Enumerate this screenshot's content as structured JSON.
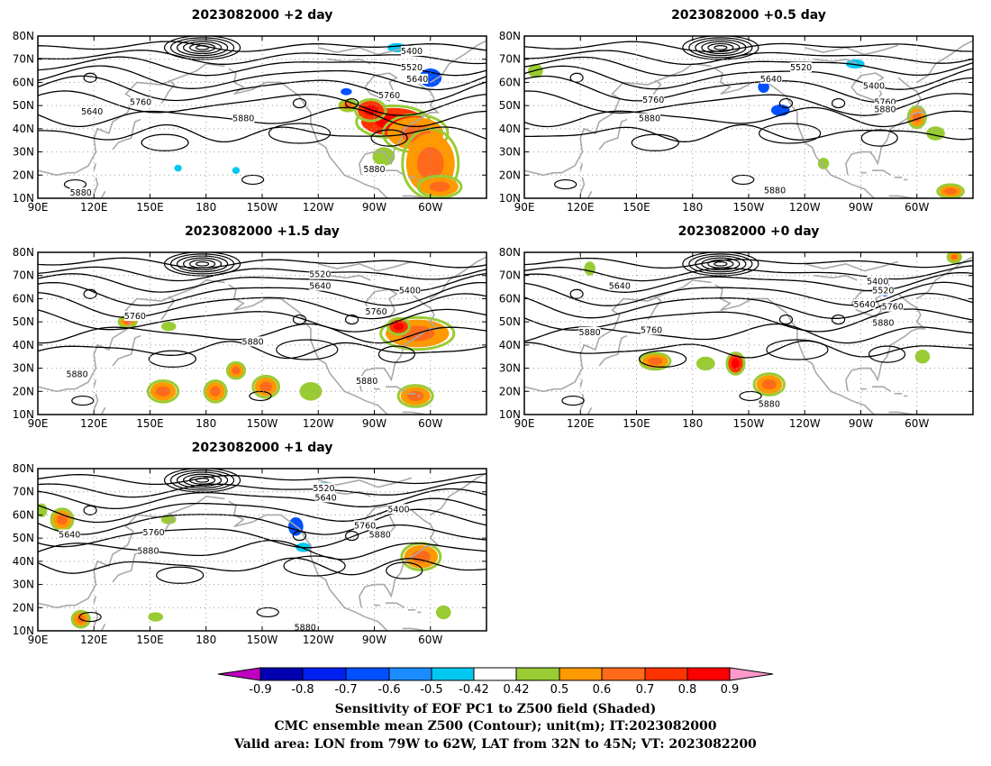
{
  "panels": [
    {
      "id": "p2",
      "title": "2023082000  +2 day",
      "lat_ticks": [
        "80N",
        "70N",
        "60N",
        "50N",
        "40N",
        "30N",
        "20N",
        "10N"
      ],
      "lon_ticks": [
        "90E",
        "120E",
        "150E",
        "180",
        "150W",
        "120W",
        "90W",
        "60W"
      ],
      "contour_labels": [
        {
          "text": "5400",
          "lon": 290,
          "lat": 73
        },
        {
          "text": "5520",
          "lon": 290,
          "lat": 66
        },
        {
          "text": "5640",
          "lon": 293,
          "lat": 61
        },
        {
          "text": "5760",
          "lon": 278,
          "lat": 54
        },
        {
          "text": "5640",
          "lon": 119,
          "lat": 47
        },
        {
          "text": "5760",
          "lon": 145,
          "lat": 51
        },
        {
          "text": "5880",
          "lon": 200,
          "lat": 44
        },
        {
          "text": "5880",
          "lon": 270,
          "lat": 22
        },
        {
          "text": "5880",
          "lon": 113,
          "lat": 12
        }
      ],
      "shading": [
        {
          "lon": 280,
          "lat": 43,
          "w": 34,
          "h": 12,
          "c": "orangered"
        },
        {
          "lon": 292,
          "lat": 38,
          "w": 30,
          "h": 14,
          "c": "orange"
        },
        {
          "lon": 300,
          "lat": 25,
          "w": 26,
          "h": 26,
          "c": "orange"
        },
        {
          "lon": 268,
          "lat": 48,
          "w": 14,
          "h": 8,
          "c": "orangered"
        },
        {
          "lon": 300,
          "lat": 62,
          "w": 12,
          "h": 8,
          "c": "blue"
        },
        {
          "lon": 282,
          "lat": 75,
          "w": 10,
          "h": 4,
          "c": "cyan"
        },
        {
          "lon": 256,
          "lat": 50,
          "w": 8,
          "h": 4,
          "c": "orange"
        },
        {
          "lon": 255,
          "lat": 56,
          "w": 6,
          "h": 3,
          "c": "blue"
        },
        {
          "lon": 196,
          "lat": 22,
          "w": 4,
          "h": 3,
          "c": "cyan"
        },
        {
          "lon": 165,
          "lat": 23,
          "w": 4,
          "h": 3,
          "c": "cyan"
        },
        {
          "lon": 275,
          "lat": 28,
          "w": 12,
          "h": 8,
          "c": "green"
        },
        {
          "lon": 305,
          "lat": 15,
          "w": 20,
          "h": 8,
          "c": "orange"
        }
      ]
    },
    {
      "id": "p05",
      "title": "2023082000  +0.5 day",
      "lat_ticks": [
        "80N",
        "70N",
        "60N",
        "50N",
        "40N",
        "30N",
        "20N",
        "10N"
      ],
      "lon_ticks": [
        "90E",
        "120E",
        "150E",
        "180",
        "150W",
        "120W",
        "90W",
        "60W"
      ],
      "contour_labels": [
        {
          "text": "5520",
          "lon": 238,
          "lat": 66
        },
        {
          "text": "5640",
          "lon": 222,
          "lat": 61
        },
        {
          "text": "5400",
          "lon": 277,
          "lat": 58
        },
        {
          "text": "5760",
          "lon": 283,
          "lat": 51
        },
        {
          "text": "5880",
          "lon": 283,
          "lat": 48
        },
        {
          "text": "5760",
          "lon": 159,
          "lat": 52
        },
        {
          "text": "5880",
          "lon": 157,
          "lat": 44
        },
        {
          "text": "5880",
          "lon": 224,
          "lat": 13
        }
      ],
      "shading": [
        {
          "lon": 218,
          "lat": 58,
          "w": 6,
          "h": 5,
          "c": "blue"
        },
        {
          "lon": 227,
          "lat": 48,
          "w": 10,
          "h": 5,
          "c": "blue"
        },
        {
          "lon": 300,
          "lat": 45,
          "w": 8,
          "h": 8,
          "c": "orange"
        },
        {
          "lon": 310,
          "lat": 38,
          "w": 10,
          "h": 6,
          "c": "green"
        },
        {
          "lon": 96,
          "lat": 65,
          "w": 8,
          "h": 6,
          "c": "green"
        },
        {
          "lon": 250,
          "lat": 25,
          "w": 6,
          "h": 5,
          "c": "green"
        },
        {
          "lon": 318,
          "lat": 13,
          "w": 12,
          "h": 5,
          "c": "orange"
        },
        {
          "lon": 267,
          "lat": 68,
          "w": 10,
          "h": 4,
          "c": "cyan"
        }
      ]
    },
    {
      "id": "p15",
      "title": "2023082000  +1.5 day",
      "lat_ticks": [
        "80N",
        "70N",
        "60N",
        "50N",
        "40N",
        "30N",
        "20N",
        "10N"
      ],
      "lon_ticks": [
        "90E",
        "120E",
        "150E",
        "180",
        "150W",
        "120W",
        "90W",
        "60W"
      ],
      "contour_labels": [
        {
          "text": "5520",
          "lon": 241,
          "lat": 70
        },
        {
          "text": "5640",
          "lon": 241,
          "lat": 65
        },
        {
          "text": "5400",
          "lon": 289,
          "lat": 63
        },
        {
          "text": "5760",
          "lon": 271,
          "lat": 54
        },
        {
          "text": "5760",
          "lon": 142,
          "lat": 52
        },
        {
          "text": "5880",
          "lon": 205,
          "lat": 41
        },
        {
          "text": "5880",
          "lon": 111,
          "lat": 27
        },
        {
          "text": "5880",
          "lon": 266,
          "lat": 24
        }
      ],
      "shading": [
        {
          "lon": 293,
          "lat": 45,
          "w": 34,
          "h": 12,
          "c": "orange"
        },
        {
          "lon": 283,
          "lat": 48,
          "w": 10,
          "h": 6,
          "c": "orangered"
        },
        {
          "lon": 157,
          "lat": 20,
          "w": 14,
          "h": 8,
          "c": "orange"
        },
        {
          "lon": 185,
          "lat": 20,
          "w": 10,
          "h": 8,
          "c": "orange"
        },
        {
          "lon": 212,
          "lat": 22,
          "w": 12,
          "h": 8,
          "c": "orange"
        },
        {
          "lon": 236,
          "lat": 20,
          "w": 12,
          "h": 8,
          "c": "green"
        },
        {
          "lon": 292,
          "lat": 18,
          "w": 16,
          "h": 8,
          "c": "orange"
        },
        {
          "lon": 138,
          "lat": 50,
          "w": 8,
          "h": 4,
          "c": "orange"
        },
        {
          "lon": 160,
          "lat": 48,
          "w": 8,
          "h": 4,
          "c": "green"
        },
        {
          "lon": 196,
          "lat": 29,
          "w": 8,
          "h": 6,
          "c": "orange"
        }
      ]
    },
    {
      "id": "p0",
      "title": "2023082000  +0 day",
      "lat_ticks": [
        "80N",
        "70N",
        "60N",
        "50N",
        "40N",
        "30N",
        "20N",
        "10N"
      ],
      "lon_ticks": [
        "90E",
        "120E",
        "150E",
        "180",
        "150W",
        "120W",
        "90W",
        "60W"
      ],
      "contour_labels": [
        {
          "text": "5640",
          "lon": 141,
          "lat": 65
        },
        {
          "text": "5400",
          "lon": 279,
          "lat": 67
        },
        {
          "text": "5520",
          "lon": 282,
          "lat": 63
        },
        {
          "text": "5640",
          "lon": 272,
          "lat": 57
        },
        {
          "text": "5760",
          "lon": 287,
          "lat": 56
        },
        {
          "text": "5880",
          "lon": 282,
          "lat": 49
        },
        {
          "text": "5880",
          "lon": 125,
          "lat": 45
        },
        {
          "text": "5760",
          "lon": 158,
          "lat": 46
        },
        {
          "text": "5880",
          "lon": 221,
          "lat": 14
        }
      ],
      "shading": [
        {
          "lon": 125,
          "lat": 73,
          "w": 6,
          "h": 6,
          "c": "green"
        },
        {
          "lon": 160,
          "lat": 33,
          "w": 14,
          "h": 6,
          "c": "orange"
        },
        {
          "lon": 187,
          "lat": 32,
          "w": 10,
          "h": 6,
          "c": "green"
        },
        {
          "lon": 221,
          "lat": 23,
          "w": 14,
          "h": 8,
          "c": "orange"
        },
        {
          "lon": 203,
          "lat": 32,
          "w": 8,
          "h": 8,
          "c": "orangered"
        },
        {
          "lon": 283,
          "lat": 64,
          "w": 6,
          "h": 6,
          "c": "blue"
        },
        {
          "lon": 303,
          "lat": 35,
          "w": 8,
          "h": 6,
          "c": "green"
        },
        {
          "lon": 320,
          "lat": 78,
          "w": 6,
          "h": 4,
          "c": "orange"
        }
      ]
    },
    {
      "id": "p1",
      "title": "2023082000  +1 day",
      "lat_ticks": [
        "80N",
        "70N",
        "60N",
        "50N",
        "40N",
        "30N",
        "20N",
        "10N"
      ],
      "lon_ticks": [
        "90E",
        "120E",
        "150E",
        "180",
        "150W",
        "120W",
        "90W",
        "60W"
      ],
      "contour_labels": [
        {
          "text": "5520",
          "lon": 243,
          "lat": 71
        },
        {
          "text": "5640",
          "lon": 244,
          "lat": 67
        },
        {
          "text": "5400",
          "lon": 283,
          "lat": 62
        },
        {
          "text": "5760",
          "lon": 265,
          "lat": 55
        },
        {
          "text": "5880",
          "lon": 273,
          "lat": 51
        },
        {
          "text": "5640",
          "lon": 107,
          "lat": 51
        },
        {
          "text": "5760",
          "lon": 152,
          "lat": 52
        },
        {
          "text": "5880",
          "lon": 149,
          "lat": 44
        },
        {
          "text": "5880",
          "lon": 233,
          "lat": 11
        }
      ],
      "shading": [
        {
          "lon": 228,
          "lat": 55,
          "w": 8,
          "h": 8,
          "c": "blue"
        },
        {
          "lon": 232,
          "lat": 46,
          "w": 8,
          "h": 4,
          "c": "cyan"
        },
        {
          "lon": 295,
          "lat": 42,
          "w": 18,
          "h": 10,
          "c": "orange"
        },
        {
          "lon": 103,
          "lat": 58,
          "w": 10,
          "h": 8,
          "c": "orange"
        },
        {
          "lon": 92,
          "lat": 62,
          "w": 6,
          "h": 6,
          "c": "green"
        },
        {
          "lon": 160,
          "lat": 58,
          "w": 8,
          "h": 4,
          "c": "green"
        },
        {
          "lon": 113,
          "lat": 15,
          "w": 8,
          "h": 6,
          "c": "orange"
        },
        {
          "lon": 153,
          "lat": 16,
          "w": 8,
          "h": 4,
          "c": "green"
        },
        {
          "lon": 243,
          "lat": 72,
          "w": 8,
          "h": 4,
          "c": "cyan"
        },
        {
          "lon": 307,
          "lat": 18,
          "w": 8,
          "h": 6,
          "c": "green"
        }
      ]
    }
  ],
  "colorbar": {
    "labels": [
      "-0.9",
      "-0.8",
      "-0.7",
      "-0.6",
      "-0.5",
      "-0.42",
      "0.42",
      "0.5",
      "0.6",
      "0.7",
      "0.8",
      "0.9"
    ],
    "colors": {
      "low_ext": "#c000c0",
      "c1": "#0000b0",
      "c2": "#0020f0",
      "c3": "#0050ff",
      "c4": "#1a8cff",
      "c5": "#00c8f0",
      "mid": "#ffffff",
      "c6": "#99cc33",
      "c7": "#ff9900",
      "c8": "#ff6a1a",
      "c9": "#ff3300",
      "c10": "#ff0000",
      "high_ext": "#ff99cc"
    }
  },
  "captions": {
    "line1": "Sensitivity of EOF PC1 to Z500 field (Shaded)",
    "line2": "CMC ensemble mean Z500 (Contour); unit(m); IT:2023082000",
    "line3": "Valid area: LON from 79W to 62W, LAT from 32N to 45N; VT: 2023082200"
  }
}
